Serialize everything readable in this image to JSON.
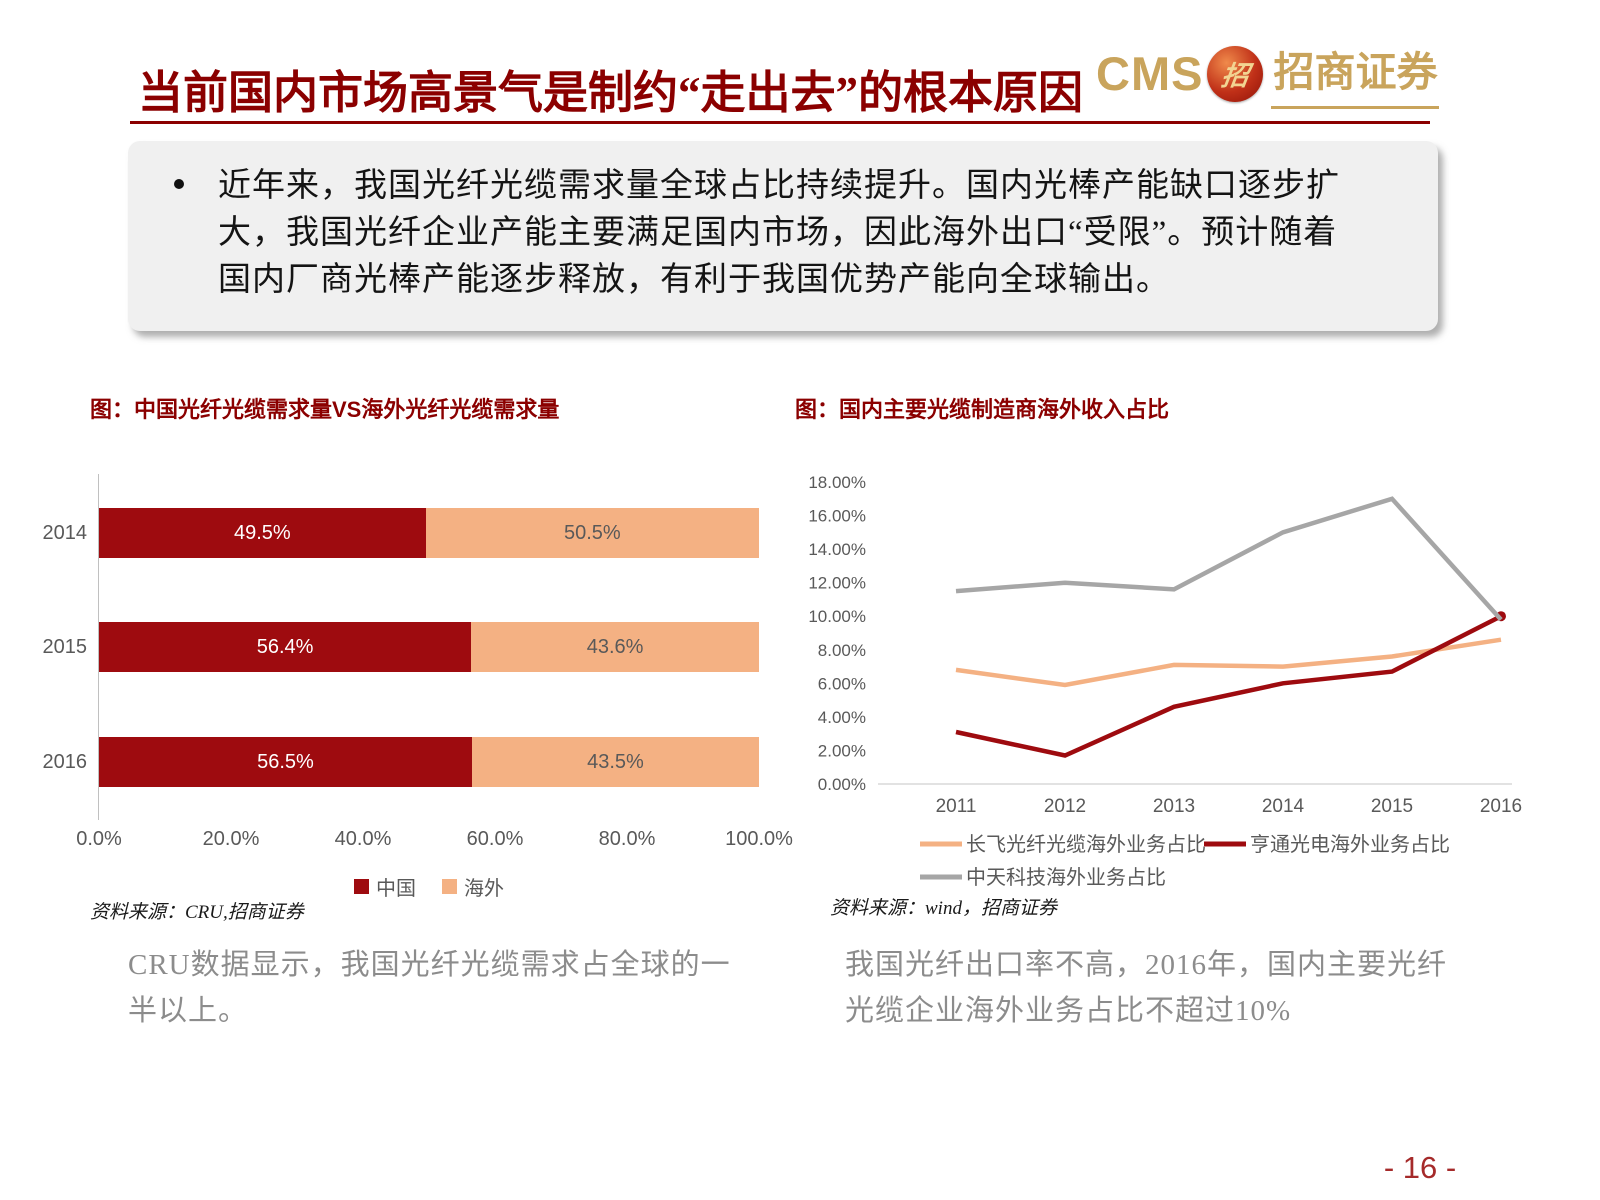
{
  "slide": {
    "title": "当前国内市场高景气是制约“走出去”的根本原因",
    "page_number": "- 16 -"
  },
  "logo": {
    "cms_text": "CMS",
    "emblem_glyph": "招",
    "brand_name": "招商证券"
  },
  "summary": {
    "bullet_text": "近年来，我国光纤光缆需求量全球占比持续提升。国内光棒产能缺口逐步扩大，我国光纤企业产能主要满足国内市场，因此海外出口“受限”。预计随着国内厂商光棒产能逐步释放，有利于我国优势产能向全球输出。"
  },
  "left_panel": {
    "chart_title": "图：中国光纤光缆需求量VS海外光纤光缆需求量",
    "source": "资料来源：CRU,招商证券",
    "caption": "CRU数据显示，我国光纤光缆需求占全球的一半以上。"
  },
  "right_panel": {
    "chart_title": "图：国内主要光缆制造商海外收入占比",
    "source": "资料来源：wind，招商证券",
    "caption": "我国光纤出口率不高，2016年，国内主要光纤光缆企业海外业务占比不超过10%"
  },
  "colors": {
    "title_red": "#8B0000",
    "gold": "#C9A45C",
    "axis_text": "#595959",
    "caption_gray": "#8C8C8C",
    "box_gray": "#F0F0F0"
  },
  "chart_data": [
    {
      "type": "bar",
      "orientation": "horizontal-stacked",
      "title": "图：中国光纤光缆需求量VS海外光纤光缆需求量",
      "categories": [
        "2014",
        "2015",
        "2016"
      ],
      "series": [
        {
          "name": "中国",
          "color": "#9E0B0F",
          "label_color": "#FFFFFF",
          "values": [
            49.5,
            56.4,
            56.5
          ]
        },
        {
          "name": "海外",
          "color": "#F4B183",
          "label_color": "#595959",
          "values": [
            50.5,
            43.6,
            43.5
          ]
        }
      ],
      "xlim": [
        0,
        100
      ],
      "x_ticks": [
        "0.0%",
        "20.0%",
        "40.0%",
        "60.0%",
        "80.0%",
        "100.0%"
      ],
      "value_suffix": "%",
      "grid": false,
      "legend_position": "bottom"
    },
    {
      "type": "line",
      "title": "图：国内主要光缆制造商海外收入占比",
      "x": [
        "2011",
        "2012",
        "2013",
        "2014",
        "2015",
        "2016"
      ],
      "series": [
        {
          "name": "长飞光纤光缆海外业务占比",
          "color": "#F4B183",
          "values": [
            6.8,
            5.9,
            7.1,
            7.0,
            7.6,
            8.6
          ]
        },
        {
          "name": "亨通光电海外业务占比",
          "color": "#9E0B0F",
          "values": [
            3.1,
            1.7,
            4.6,
            6.0,
            6.7,
            10.0
          ],
          "end_marker": true
        },
        {
          "name": "中天科技海外业务占比",
          "color": "#A6A6A6",
          "values": [
            11.5,
            12.0,
            11.6,
            15.0,
            17.0,
            9.8
          ]
        }
      ],
      "ylim": [
        0,
        18
      ],
      "y_ticks": [
        "0.00%",
        "2.00%",
        "4.00%",
        "6.00%",
        "8.00%",
        "10.00%",
        "12.00%",
        "14.00%",
        "16.00%",
        "18.00%"
      ],
      "grid": false,
      "legend_position": "bottom"
    }
  ]
}
